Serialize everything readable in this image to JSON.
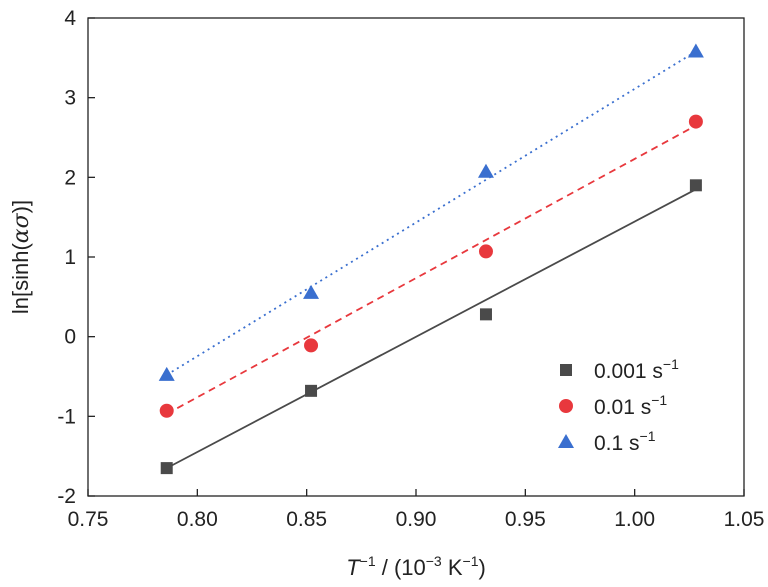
{
  "chart_data": {
    "type": "scatter",
    "xlabel": {
      "main": "T",
      "sup1": "−1",
      "mid": " / (10",
      "sup2": "−3",
      "unit": " K",
      "sup3": "−1",
      "end": ")"
    },
    "ylabel": {
      "pre": "ln[sinh(",
      "greek": "ασ",
      "post": ")]"
    },
    "xlim": [
      0.75,
      1.05
    ],
    "ylim": [
      -2,
      4
    ],
    "xticks": [
      "0.75",
      "0.80",
      "0.85",
      "0.90",
      "0.95",
      "1.00",
      "1.05"
    ],
    "yticks": [
      "-2",
      "-1",
      "0",
      "1",
      "2",
      "3",
      "4"
    ],
    "grid": false,
    "legend_position": "bottom-right",
    "series": [
      {
        "name": "0.001 s",
        "name_sup": "−1",
        "marker": "square",
        "color": "#4a4a4a",
        "fit_line": "solid",
        "x": [
          0.786,
          0.852,
          0.932,
          1.028
        ],
        "y": [
          -1.65,
          -0.68,
          0.28,
          1.9
        ],
        "fit": [
          [
            0.786,
            -1.65
          ],
          [
            1.028,
            1.85
          ]
        ]
      },
      {
        "name": "0.01 s",
        "name_sup": "−1",
        "marker": "circle",
        "color": "#e8383d",
        "fit_line": "dashed",
        "x": [
          0.786,
          0.852,
          0.932,
          1.028
        ],
        "y": [
          -0.93,
          -0.11,
          1.07,
          2.7
        ],
        "fit": [
          [
            0.786,
            -0.97
          ],
          [
            1.028,
            2.65
          ]
        ]
      },
      {
        "name": "0.1 s",
        "name_sup": "−1",
        "marker": "triangle",
        "color": "#3a6fcf",
        "fit_line": "dotted",
        "x": [
          0.786,
          0.852,
          0.932,
          1.028
        ],
        "y": [
          -0.48,
          0.55,
          2.07,
          3.58
        ],
        "fit": [
          [
            0.786,
            -0.48
          ],
          [
            1.028,
            3.58
          ]
        ]
      }
    ]
  }
}
